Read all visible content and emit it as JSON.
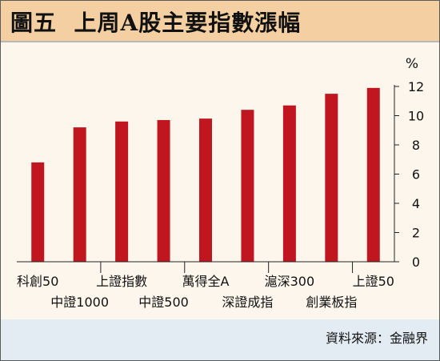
{
  "title": "圖五  上周A股主要指數漲幅",
  "source": "資料來源：金融界",
  "colors": {
    "title_bg": "#f4cfa1",
    "chart_bg": "#fdf6ec",
    "footer_bg": "#e4ecf3",
    "bar": "#c0161f"
  },
  "chart_data": {
    "type": "bar",
    "categories": [
      "科創50",
      "中證1000",
      "上證指數",
      "中證500",
      "萬得全A",
      "深證成指",
      "滬深300",
      "創業板指",
      "上證50"
    ],
    "values": [
      6.8,
      9.2,
      9.6,
      9.7,
      9.8,
      10.4,
      10.7,
      11.5,
      11.9
    ],
    "yunit": "%",
    "ylim": [
      0,
      12
    ],
    "yticks": [
      0,
      2,
      4,
      6,
      8,
      10,
      12
    ],
    "grid": false,
    "axis_position": "right"
  }
}
